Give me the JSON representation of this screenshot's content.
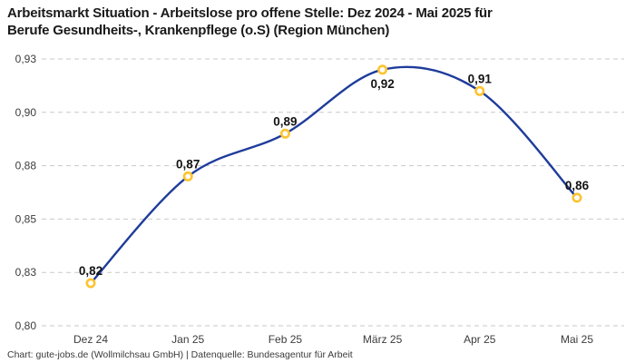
{
  "header": {
    "title_line1": "Arbeitsmarkt Situation - Arbeitslose pro offene Stelle: Dez 2024 - Mai 2025 für",
    "title_line2": "Berufe Gesundheits-, Krankenpflege (o.S) (Region München)"
  },
  "footer": {
    "text": "Chart: gute-jobs.de (Wollmilchsau GmbH) | Datenquelle: Bundesagentur für Arbeit"
  },
  "colors": {
    "background": "#ffffff",
    "line": "#1e3c9b",
    "marker_ring": "#fdc330",
    "marker_fill": "#ffffff",
    "grid": "#c9c9c9",
    "title_text": "#1a1a1a",
    "axis_text": "#3c3c3c",
    "data_label_text": "#141414",
    "footer_text": "#3a3a3a"
  },
  "chart_data": {
    "type": "line",
    "title": "Arbeitsmarkt Situation - Arbeitslose pro offene Stelle: Dez 2024 - Mai 2025 für Berufe Gesundheits-, Krankenpflege (o.S) (Region München)",
    "categories": [
      "Dez 24",
      "Jan 25",
      "Feb 25",
      "März 25",
      "Apr 25",
      "Mai 25"
    ],
    "values": [
      0.82,
      0.87,
      0.89,
      0.92,
      0.91,
      0.86
    ],
    "data_labels": [
      "0,82",
      "0,87",
      "0,89",
      "0,92",
      "0,91",
      "0,86"
    ],
    "label_positions": [
      "above",
      "above",
      "above",
      "below",
      "above",
      "above"
    ],
    "ylim": [
      0.8,
      0.925
    ],
    "yticks": {
      "values": [
        0.925,
        0.9,
        0.875,
        0.85,
        0.825,
        0.8
      ],
      "labels": [
        "0,93",
        "0,90",
        "0,88",
        "0,85",
        "0,83",
        "0,80"
      ]
    },
    "xlabel": "",
    "ylabel": "",
    "grid": "horizontal-dashed",
    "legend": "none",
    "smoothing": true,
    "source": "Chart: gute-jobs.de (Wollmilchsau GmbH) | Datenquelle: Bundesagentur für Arbeit"
  }
}
